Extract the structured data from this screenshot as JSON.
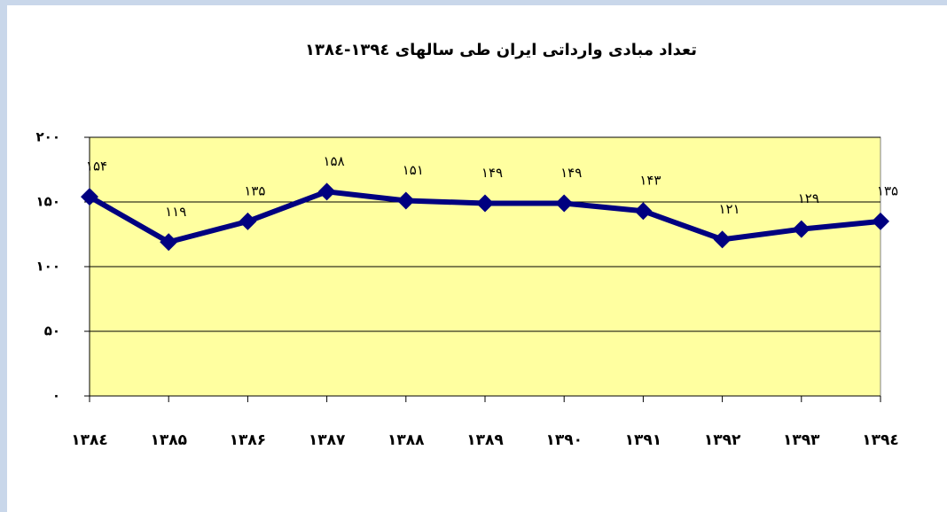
{
  "chart_data": {
    "type": "line",
    "title": "تعداد مبادی وارداتی ایران طی سالهای ۱۳۹٤-۱۳۸٤",
    "categories": [
      "۱۳۸٤",
      "۱۳۸۵",
      "۱۳۸۶",
      "۱۳۸۷",
      "۱۳۸۸",
      "۱۳۸۹",
      "۱۳۹۰",
      "۱۳۹۱",
      "۱۳۹۲",
      "۱۳۹۳",
      "۱۳۹٤"
    ],
    "series": [
      {
        "color": "#000080",
        "values": [
          154,
          119,
          135,
          158,
          151,
          149,
          149,
          143,
          121,
          129,
          135
        ],
        "value_labels": [
          "۱۵۴",
          "۱۱۹",
          "۱۳۵",
          "۱۵۸",
          "۱۵۱",
          "۱۴۹",
          "۱۴۹",
          "۱۴۳",
          "۱۲۱",
          "۱۲۹",
          "۱۳۵"
        ]
      }
    ],
    "ylim": [
      0,
      200
    ],
    "yticks": [
      {
        "value": 0,
        "label": "۰"
      },
      {
        "value": 50,
        "label": "۵۰"
      },
      {
        "value": 100,
        "label": "۱۰۰"
      },
      {
        "value": 150,
        "label": "۱۵۰"
      },
      {
        "value": 200,
        "label": "۲۰۰"
      }
    ],
    "grid": true,
    "plot_background": "#ffffa0"
  }
}
